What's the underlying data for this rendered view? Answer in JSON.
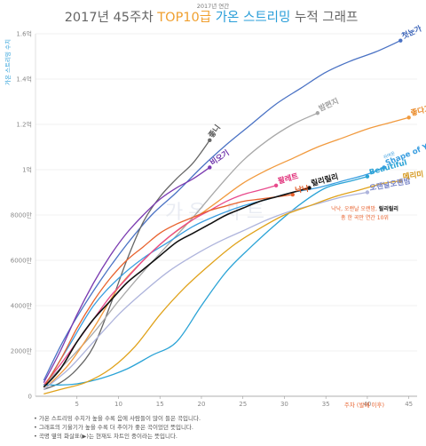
{
  "chart_data": {
    "type": "line",
    "supertitle": "2017년 연간",
    "title": {
      "part1": "2017년 45주차 ",
      "part2": "TOP10급",
      "part3": " 가온 스트리밍",
      "part4": " 누적 그래프"
    },
    "ylabel": "가온 스트리밍 수치",
    "xlabel": "주차 (발매 이후)",
    "watermark": "가온 차트",
    "xlim": [
      0,
      46
    ],
    "ylim": [
      0,
      160000000
    ],
    "x_ticks": [
      "5",
      "10",
      "15",
      "20",
      "25",
      "30",
      "35",
      "40",
      "45"
    ],
    "x_tick_values": [
      5,
      10,
      15,
      20,
      25,
      30,
      35,
      40,
      45
    ],
    "y_ticks": [
      "0",
      "2000만",
      "4000만",
      "6000만",
      "8000만",
      "1억",
      "1.2억",
      "1.4억",
      "1.6억"
    ],
    "y_tick_values": [
      0,
      20000000,
      40000000,
      60000000,
      80000000,
      100000000,
      120000000,
      140000000,
      160000000
    ],
    "annotation": {
      "line1_prefix": "낙낙, 오랜날 오랜밤, ",
      "line1_bold": "릴리릴리",
      "line2": "총 한 곡만 연간 10위"
    },
    "series": [
      {
        "name": "첫눈가",
        "color": "#4a72c4",
        "label_color": "#3a63b8",
        "x": [
          1,
          3,
          5,
          8,
          11,
          14,
          17,
          20,
          23,
          26,
          29,
          32,
          35,
          38,
          41,
          44
        ],
        "y": [
          7000000,
          22000000,
          35000000,
          52000000,
          67000000,
          80000000,
          90000000,
          101000000,
          111000000,
          120000000,
          129000000,
          136000000,
          143000000,
          148000000,
          152000000,
          157000000
        ]
      },
      {
        "name": "좋니",
        "color": "#666666",
        "label_color": "#555555",
        "x": [
          1,
          3,
          5,
          7,
          9,
          11,
          13,
          15,
          17,
          19,
          21
        ],
        "y": [
          3000000,
          6000000,
          12000000,
          22000000,
          40000000,
          60000000,
          77000000,
          88000000,
          96000000,
          103000000,
          113000000
        ]
      },
      {
        "name": "비오기",
        "color": "#7a3ab0",
        "label_color": "#6a2ea8",
        "x": [
          1,
          3,
          5,
          7,
          9,
          11,
          13,
          15,
          17,
          19,
          21
        ],
        "y": [
          6000000,
          20000000,
          36000000,
          50000000,
          62000000,
          72000000,
          80000000,
          87000000,
          92000000,
          96000000,
          101000000
        ]
      },
      {
        "name": "밤편지",
        "color": "#a8a8a8",
        "label_color": "#a0a0a0",
        "x": [
          1,
          4,
          7,
          10,
          13,
          16,
          19,
          22,
          25,
          28,
          31,
          34
        ],
        "y": [
          5000000,
          16000000,
          28000000,
          42000000,
          55000000,
          67000000,
          79000000,
          92000000,
          104000000,
          113000000,
          120000000,
          125000000
        ]
      },
      {
        "name": "좋다고말해",
        "color": "#f19a3e",
        "label_color": "#ea8b2a",
        "x": [
          1,
          4,
          7,
          10,
          13,
          16,
          19,
          22,
          25,
          28,
          31,
          34,
          37,
          40,
          43,
          45
        ],
        "y": [
          3000000,
          14000000,
          30000000,
          48000000,
          60000000,
          70000000,
          78000000,
          86000000,
          94000000,
          100000000,
          105000000,
          110000000,
          114000000,
          118000000,
          121000000,
          123000000
        ]
      },
      {
        "name": "Shape of You",
        "sub": "귀여운",
        "color": "#3a9ee0",
        "label_color": "#3a9ee0",
        "x": [
          1,
          4,
          7,
          10,
          13,
          16,
          19,
          22,
          25,
          28,
          31,
          34,
          37,
          40,
          42
        ],
        "y": [
          4000000,
          22000000,
          40000000,
          52000000,
          61000000,
          68000000,
          75000000,
          80000000,
          84000000,
          87000000,
          90000000,
          92000000,
          95000000,
          98000000,
          101000000
        ]
      },
      {
        "name": "팔레트",
        "color": "#e84a8c",
        "label_color": "#e02f79",
        "x": [
          1,
          3,
          5,
          7,
          9,
          11,
          13,
          15,
          17,
          19,
          21,
          23,
          25,
          27,
          29
        ],
        "y": [
          5000000,
          14000000,
          24000000,
          34000000,
          44000000,
          52000000,
          60000000,
          67000000,
          73000000,
          78000000,
          82000000,
          86000000,
          89000000,
          91000000,
          93000000
        ]
      },
      {
        "name": "낙낙",
        "color": "#e8622e",
        "label_color": "#e05a24",
        "x": [
          1,
          3,
          5,
          7,
          9,
          11,
          13,
          15,
          17,
          19,
          21,
          23,
          25,
          27,
          29,
          31
        ],
        "y": [
          4000000,
          16000000,
          30000000,
          42000000,
          52000000,
          60000000,
          66000000,
          72000000,
          76000000,
          79000000,
          82000000,
          84000000,
          86000000,
          87000000,
          88000000,
          89000000
        ]
      },
      {
        "name": "Beautiful",
        "color": "#2aa3d6",
        "label_color": "#2aa3d6",
        "x": [
          1,
          3,
          5,
          8,
          11,
          14,
          17,
          20,
          23,
          26,
          29,
          32,
          35,
          38,
          40
        ],
        "y": [
          5000000,
          5000000,
          5500000,
          8000000,
          12000000,
          18000000,
          24000000,
          40000000,
          55000000,
          66000000,
          76000000,
          85000000,
          92000000,
          95000000,
          97000000
        ]
      },
      {
        "name": "릴리릴리",
        "color": "#111111",
        "label_color": "#111111",
        "x": [
          1,
          3,
          5,
          7,
          9,
          11,
          13,
          15,
          17,
          19,
          21,
          23,
          25,
          27,
          29,
          31,
          33
        ],
        "y": [
          4000000,
          12000000,
          24000000,
          34000000,
          42000000,
          50000000,
          56000000,
          62000000,
          68000000,
          72000000,
          76000000,
          80000000,
          83000000,
          86000000,
          88000000,
          90000000,
          92000000
        ]
      },
      {
        "name": "오랜날오랜밤",
        "color": "#aeb4dc",
        "label_color": "#7a86c8",
        "x": [
          1,
          4,
          7,
          10,
          13,
          16,
          19,
          22,
          25,
          28,
          31,
          34,
          37,
          40
        ],
        "y": [
          3000000,
          12000000,
          24000000,
          36000000,
          46000000,
          55000000,
          62000000,
          68000000,
          73000000,
          78000000,
          82000000,
          85000000,
          88000000,
          90000000
        ]
      },
      {
        "name": "메리미",
        "color": "#e0a21a",
        "label_color": "#d4961a",
        "x": [
          1,
          3,
          6,
          9,
          12,
          15,
          18,
          21,
          24,
          27,
          30,
          33,
          36,
          39,
          42,
          44
        ],
        "y": [
          1000000,
          3000000,
          6000000,
          12000000,
          22000000,
          36000000,
          48000000,
          58000000,
          67000000,
          74000000,
          80000000,
          84000000,
          88000000,
          91000000,
          94000000,
          95000000
        ]
      }
    ],
    "notes": [
      "가온 스트리밍 수치가 높을 수록 음에 사람들이 많이 들은 곡입니다.",
      "그래프의 기울기가 높을 수록 더 추이가 좋은 곡이었던 뜻입니다.",
      "곡명 옆의 화살표(▶)는 현재도 차트인 중이라는 뜻입니다."
    ]
  }
}
